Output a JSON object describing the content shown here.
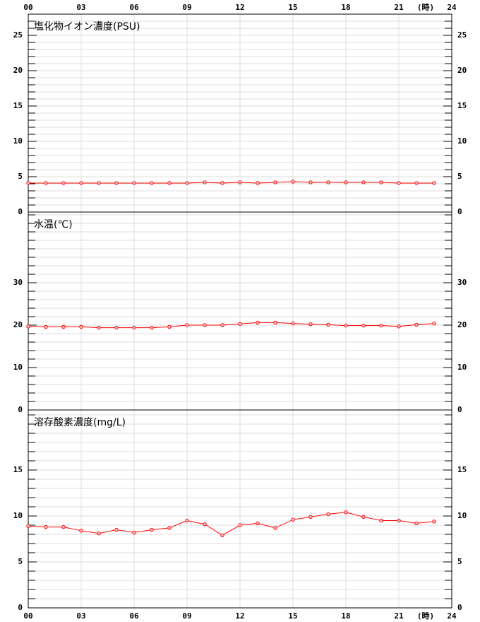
{
  "chart_data": [
    {
      "type": "line",
      "title": "塩化物イオン濃度(PSU)",
      "color": "#ff0000",
      "x": [
        0,
        1,
        2,
        3,
        4,
        5,
        6,
        7,
        8,
        9,
        10,
        11,
        12,
        13,
        14,
        15,
        16,
        17,
        18,
        19,
        20,
        21,
        22,
        23
      ],
      "values": [
        4.1,
        4.1,
        4.1,
        4.1,
        4.1,
        4.1,
        4.1,
        4.1,
        4.1,
        4.1,
        4.2,
        4.1,
        4.2,
        4.1,
        4.2,
        4.3,
        4.2,
        4.2,
        4.2,
        4.2,
        4.2,
        4.1,
        4.1,
        4.1
      ],
      "xlim": [
        0,
        24
      ],
      "xticks": [
        {
          "value": 0,
          "label": "00"
        },
        {
          "value": 3,
          "label": "03"
        },
        {
          "value": 6,
          "label": "06"
        },
        {
          "value": 9,
          "label": "09"
        },
        12,
        15,
        18,
        {
          "value": 21,
          "label": "21"
        },
        24
      ],
      "x_unit": "(時)",
      "xtick_labels": "top",
      "ylim": [
        0,
        28
      ],
      "yticks": [
        0,
        5,
        10,
        15,
        20,
        25
      ],
      "yminor": 1,
      "grid": true
    },
    {
      "type": "line",
      "title": "水温(℃)",
      "color": "#ff0000",
      "x": [
        0,
        1,
        2,
        3,
        4,
        5,
        6,
        7,
        8,
        9,
        10,
        11,
        12,
        13,
        14,
        15,
        16,
        17,
        18,
        19,
        20,
        21,
        22,
        23
      ],
      "values": [
        19.7,
        19.6,
        19.6,
        19.6,
        19.4,
        19.4,
        19.4,
        19.4,
        19.6,
        20.0,
        20.0,
        20.0,
        20.3,
        20.6,
        20.6,
        20.4,
        20.2,
        20.1,
        19.9,
        19.9,
        19.9,
        19.7,
        20.1,
        20.4
      ],
      "xlim": [
        0,
        24
      ],
      "xticks": [
        0,
        3,
        6,
        9,
        12,
        15,
        18,
        21,
        24
      ],
      "xtick_labels": "none",
      "ylim": [
        0,
        46.67
      ],
      "yticks": [
        0,
        10,
        20,
        30
      ],
      "yminor": 2,
      "grid": true
    },
    {
      "type": "line",
      "title": "溶存酸素濃度(mg/L)",
      "color": "#ff0000",
      "x": [
        0,
        1,
        2,
        3,
        4,
        5,
        6,
        7,
        8,
        9,
        10,
        11,
        12,
        13,
        14,
        15,
        16,
        17,
        18,
        19,
        20,
        21,
        22,
        23
      ],
      "values": [
        8.9,
        8.8,
        8.8,
        8.4,
        8.1,
        8.5,
        8.2,
        8.5,
        8.7,
        9.5,
        9.1,
        7.9,
        9.0,
        9.2,
        8.7,
        9.6,
        9.9,
        10.2,
        10.4,
        9.9,
        9.5,
        9.5,
        9.2,
        9.4
      ],
      "xlim": [
        0,
        24
      ],
      "xticks": [
        {
          "value": 0,
          "label": "00"
        },
        {
          "value": 3,
          "label": "03"
        },
        {
          "value": 6,
          "label": "06"
        },
        {
          "value": 9,
          "label": "09"
        },
        12,
        15,
        18,
        {
          "value": 21,
          "label": "21"
        },
        24
      ],
      "x_unit": "(時)",
      "xtick_labels": "bottom",
      "ylim": [
        0,
        21.54
      ],
      "yticks": [
        0,
        5,
        10,
        15
      ],
      "yminor": 1,
      "grid": true
    }
  ]
}
